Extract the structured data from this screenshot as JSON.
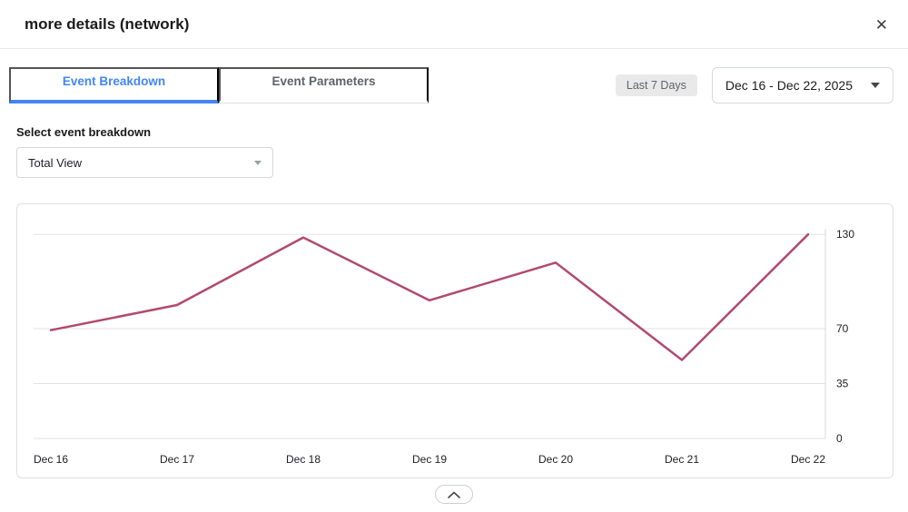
{
  "modal": {
    "title": "more details (network)",
    "close_glyph": "✕"
  },
  "tabs": [
    {
      "label": "Event Breakdown",
      "active": true
    },
    {
      "label": "Event Parameters",
      "active": false
    }
  ],
  "filters": {
    "range_badge": "Last 7 Days",
    "date_range": "Dec 16 - Dec 22, 2025"
  },
  "breakdown": {
    "label": "Select event breakdown",
    "selected": "Total View"
  },
  "chart_data": {
    "type": "line",
    "title": "",
    "x": [
      "Dec 16",
      "Dec 17",
      "Dec 18",
      "Dec 19",
      "Dec 20",
      "Dec 21",
      "Dec 22"
    ],
    "series": [
      {
        "name": "Total View",
        "values": [
          69,
          85,
          128,
          88,
          112,
          50,
          130
        ]
      }
    ],
    "y_ticks": [
      0,
      35,
      70,
      130
    ],
    "ylim": [
      0,
      133
    ],
    "y_axis_position": "right",
    "grid": true,
    "line_color": "#b14a6b",
    "grid_color": "#e3e3e3",
    "axis_color": "#d9d9d9"
  },
  "footer": {
    "collapse_icon": "chevron-up"
  }
}
